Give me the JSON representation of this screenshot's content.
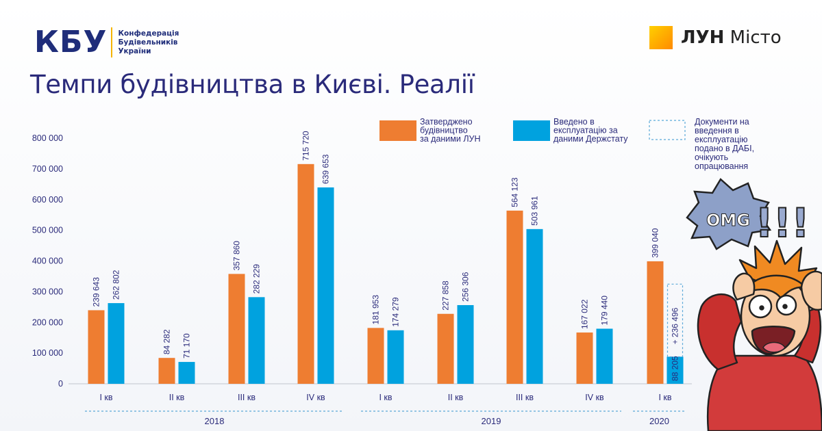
{
  "header": {
    "kbu_mark": "КБУ",
    "kbu_lines": [
      "Конфедерація",
      "Будівельників",
      "України"
    ],
    "lun_bold": "ЛУН",
    "lun_rest": " Місто",
    "title": "Темпи будівництва в Києві. Реалії"
  },
  "colors": {
    "approved": "#ee7d31",
    "commissioned": "#00a2df",
    "pending_outline": "#5aa8d8",
    "text": "#2a2a7a",
    "title": "#2a2a7a"
  },
  "chart_data": {
    "type": "bar",
    "categories": [
      "I кв",
      "II кв",
      "III кв",
      "IV кв",
      "I кв",
      "II кв",
      "III кв",
      "IV кв",
      "I кв"
    ],
    "groups": [
      {
        "label": "2018",
        "quarters": 4
      },
      {
        "label": "2019",
        "quarters": 4
      },
      {
        "label": "2020",
        "quarters": 1
      }
    ],
    "series": [
      {
        "name": "Затверджено будівництво за даними ЛУН",
        "color": "#ee7d31",
        "values": [
          239643,
          84282,
          357860,
          715720,
          181953,
          227858,
          564123,
          167022,
          399040
        ],
        "labels": [
          "239 643",
          "84 282",
          "357 860",
          "715 720",
          "181 953",
          "227 858",
          "564 123",
          "167 022",
          "399 040"
        ]
      },
      {
        "name": "Введено в експлуатацію за даними Держстату",
        "color": "#00a2df",
        "values": [
          262802,
          71170,
          282229,
          639653,
          174279,
          256306,
          503961,
          179440,
          88205
        ],
        "labels": [
          "262 802",
          "71 170",
          "282 229",
          "639 653",
          "174 279",
          "256 306",
          "503 961",
          "179 440",
          "88 205"
        ]
      }
    ],
    "pending": {
      "category_index": 8,
      "value": 236496,
      "label": "+ 236 496",
      "name": "Документи на введення в експлуатацію подано в ДАБІ, очікують опрацювання"
    },
    "legend": [
      {
        "kind": "fill",
        "color": "#ee7d31",
        "lines": [
          "Затверджено",
          "будівництво",
          "за даними ЛУН"
        ]
      },
      {
        "kind": "fill",
        "color": "#00a2df",
        "lines": [
          "Введено в",
          "експлуатацію за",
          "даними Держстату"
        ]
      },
      {
        "kind": "dashed",
        "color": "#5aa8d8",
        "lines": [
          "Документи на",
          "введення в",
          "експлуатацію",
          "подано в ДАБІ,",
          "очікують",
          "опрацювання"
        ]
      }
    ],
    "yticks": [
      0,
      100000,
      200000,
      300000,
      400000,
      500000,
      600000,
      700000,
      800000
    ],
    "ytick_labels": [
      "0",
      "100 000",
      "200 000",
      "300 000",
      "400 000",
      "500 000",
      "600 000",
      "700 000",
      "800 000"
    ],
    "ylim": [
      0,
      800000
    ],
    "grid": false,
    "legend_position": "top-right"
  },
  "decor": {
    "omg_text": "OMG",
    "exclamations": "!!!"
  }
}
